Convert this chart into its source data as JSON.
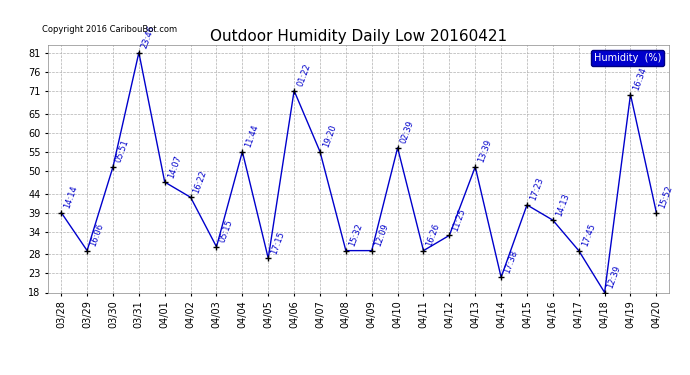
{
  "title": "Outdoor Humidity Daily Low 20160421",
  "ylabel": "Humidity  (%)",
  "copyright_text": "Copyright 2016 CaribouBot.com",
  "dates": [
    "03/28",
    "03/29",
    "03/30",
    "03/31",
    "04/01",
    "04/02",
    "04/03",
    "04/04",
    "04/05",
    "04/06",
    "04/07",
    "04/08",
    "04/09",
    "04/10",
    "04/11",
    "04/12",
    "04/13",
    "04/14",
    "04/15",
    "04/16",
    "04/17",
    "04/18",
    "04/19",
    "04/20"
  ],
  "values": [
    39,
    29,
    51,
    81,
    47,
    43,
    30,
    55,
    27,
    71,
    55,
    29,
    29,
    56,
    29,
    33,
    51,
    22,
    41,
    37,
    29,
    18,
    70,
    39
  ],
  "times": [
    "14:14",
    "16:06",
    "05:51",
    "23:46",
    "14:07",
    "16:22",
    "05:15",
    "11:44",
    "17:15",
    "01:22",
    "19:20",
    "15:32",
    "12:09",
    "02:39",
    "16:26",
    "11:25",
    "13:39",
    "17:38",
    "17:23",
    "14:13",
    "17:45",
    "12:39",
    "16:34",
    "15:52"
  ],
  "line_color": "#0000cc",
  "marker_color": "#000000",
  "bg_color": "#ffffff",
  "grid_color": "#b0b0b0",
  "legend_bg": "#0000cc",
  "legend_text_color": "#ffffff",
  "ylim_min": 18,
  "ylim_max": 83,
  "yticks": [
    18,
    23,
    28,
    34,
    39,
    44,
    50,
    55,
    60,
    65,
    71,
    76,
    81
  ],
  "title_fontsize": 11,
  "label_fontsize": 6,
  "tick_fontsize": 7,
  "copyright_fontsize": 6
}
